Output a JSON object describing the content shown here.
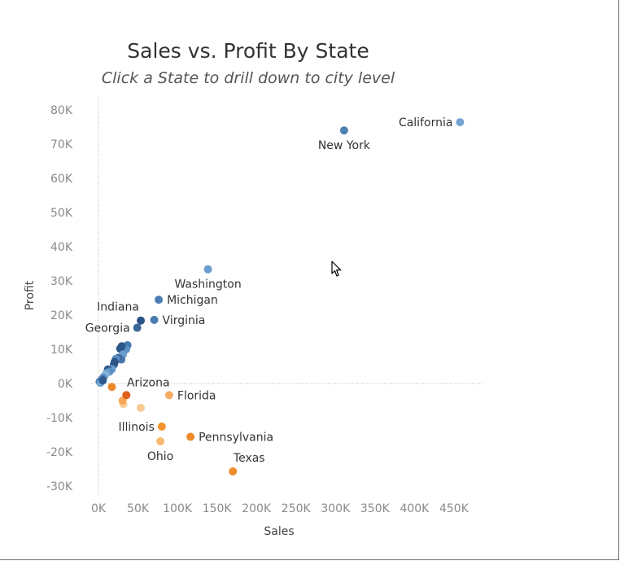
{
  "title": "Sales vs. Profit By State",
  "subtitle": "Click a State to drill down to  city level",
  "chart_data": {
    "type": "scatter",
    "title": "Sales vs. Profit By State",
    "subtitle": "Click a State to drill down to  city level",
    "xlabel": "Sales",
    "ylabel": "Profit",
    "xlim": [
      0,
      460000
    ],
    "ylim": [
      -32000,
      85000
    ],
    "xticks": [
      0,
      50000,
      100000,
      150000,
      200000,
      250000,
      300000,
      350000,
      400000,
      450000
    ],
    "xtick_labels": [
      "0K",
      "50K",
      "100K",
      "150K",
      "200K",
      "250K",
      "300K",
      "350K",
      "400K",
      "450K"
    ],
    "yticks": [
      -30000,
      -20000,
      -10000,
      0,
      10000,
      20000,
      30000,
      40000,
      50000,
      60000,
      70000,
      80000
    ],
    "ytick_labels": [
      "-30K",
      "-20K",
      "-10K",
      "0K",
      "10K",
      "20K",
      "30K",
      "40K",
      "50K",
      "60K",
      "70K",
      "80K"
    ],
    "grid": false,
    "zero_lines": true,
    "points": [
      {
        "label": "California",
        "x": 457700,
        "y": 76400,
        "color": "#74a5d1"
      },
      {
        "label": "New York",
        "x": 310900,
        "y": 74000,
        "color": "#4f80b3"
      },
      {
        "label": "Washington",
        "x": 138600,
        "y": 33400,
        "color": "#6a9ccd"
      },
      {
        "label": "Michigan",
        "x": 76300,
        "y": 24500,
        "color": "#4c7db2"
      },
      {
        "label": "Virginia",
        "x": 70600,
        "y": 18600,
        "color": "#4b7cb1"
      },
      {
        "label": "Indiana",
        "x": 53600,
        "y": 18400,
        "color": "#2a5285"
      },
      {
        "label": "Georgia",
        "x": 49100,
        "y": 16300,
        "color": "#3a6699"
      },
      {
        "label": "Arizona",
        "x": 35300,
        "y": -3400,
        "color": "#e0601a"
      },
      {
        "label": "Florida",
        "x": 89500,
        "y": -3400,
        "color": "#f7ad63"
      },
      {
        "label": "Illinois",
        "x": 80200,
        "y": -12600,
        "color": "#f2932e"
      },
      {
        "label": "Pennsylvania",
        "x": 116500,
        "y": -15600,
        "color": "#ee8a2c"
      },
      {
        "label": "Ohio",
        "x": 78300,
        "y": -16900,
        "color": "#f7b96e"
      },
      {
        "label": "Texas",
        "x": 170200,
        "y": -25700,
        "color": "#f08b2d"
      },
      {
        "label": "",
        "x": 53500,
        "y": -7100,
        "color": "#fbcb93"
      },
      {
        "label": "",
        "x": 31500,
        "y": -6000,
        "color": "#fbcb93"
      },
      {
        "label": "",
        "x": 30500,
        "y": -5000,
        "color": "#f6a858"
      },
      {
        "label": "",
        "x": 17000,
        "y": -1000,
        "color": "#ee8a2c"
      },
      {
        "label": "",
        "x": 36700,
        "y": 11200,
        "color": "#4a7bb0"
      },
      {
        "label": "",
        "x": 35000,
        "y": 10000,
        "color": "#5b8fc3"
      },
      {
        "label": "",
        "x": 29500,
        "y": 10900,
        "color": "#2f5a8e"
      },
      {
        "label": "",
        "x": 27500,
        "y": 10200,
        "color": "#2c568a"
      },
      {
        "label": "",
        "x": 31000,
        "y": 8500,
        "color": "#6a9ccd"
      },
      {
        "label": "",
        "x": 29000,
        "y": 7000,
        "color": "#4a7bb0"
      },
      {
        "label": "",
        "x": 25000,
        "y": 7500,
        "color": "#3c6a9e"
      },
      {
        "label": "",
        "x": 22000,
        "y": 7200,
        "color": "#5b8fc3"
      },
      {
        "label": "",
        "x": 19500,
        "y": 5500,
        "color": "#3a6699"
      },
      {
        "label": "",
        "x": 20500,
        "y": 6300,
        "color": "#2a5285"
      },
      {
        "label": "",
        "x": 17000,
        "y": 4200,
        "color": "#6a9ccd"
      },
      {
        "label": "",
        "x": 12000,
        "y": 4100,
        "color": "#2a5285"
      },
      {
        "label": "",
        "x": 14000,
        "y": 3500,
        "color": "#5b8fc3"
      },
      {
        "label": "",
        "x": 10000,
        "y": 3000,
        "color": "#74a5d1"
      },
      {
        "label": "",
        "x": 8000,
        "y": 2300,
        "color": "#8cb6dc"
      },
      {
        "label": "",
        "x": 6000,
        "y": 1700,
        "color": "#5b8fc3"
      },
      {
        "label": "",
        "x": 4500,
        "y": 1200,
        "color": "#4a7bb0"
      },
      {
        "label": "",
        "x": 3000,
        "y": 800,
        "color": "#6a9ccd"
      },
      {
        "label": "",
        "x": 1500,
        "y": 500,
        "color": "#3c6a9e"
      },
      {
        "label": "",
        "x": 2500,
        "y": 200,
        "color": "#74a5d1"
      },
      {
        "label": "",
        "x": 5500,
        "y": 900,
        "color": "#2f5a8e"
      }
    ]
  }
}
